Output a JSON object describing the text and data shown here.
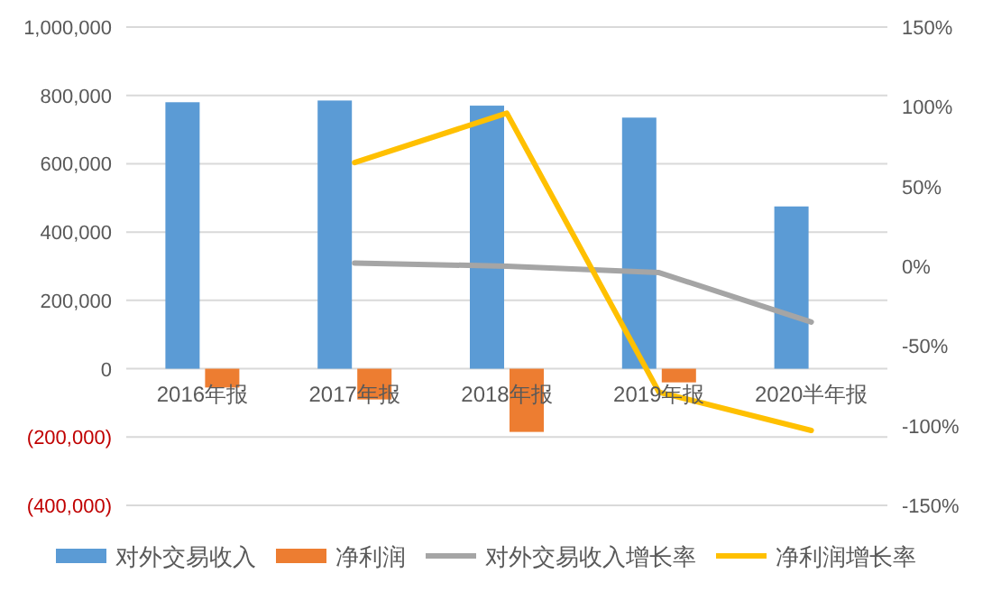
{
  "chart_data": {
    "type": "bar",
    "categories": [
      "2016年报",
      "2017年报",
      "2018年报",
      "2019年报",
      "2020半年报"
    ],
    "series": [
      {
        "name": "对外交易收入",
        "color": "#5b9bd5",
        "values": [
          780000,
          785000,
          770000,
          735000,
          475000
        ]
      },
      {
        "name": "净利润",
        "color": "#ed7d31",
        "values": [
          -55000,
          -90000,
          -185000,
          -40000,
          null
        ]
      },
      {
        "name": "对外交易收入增长率",
        "type": "line",
        "axis": "y2",
        "color": "#a5a5a5",
        "values": [
          null,
          2,
          0,
          -4,
          -35
        ]
      },
      {
        "name": "净利润增长率",
        "type": "line",
        "axis": "y2",
        "color": "#ffc000",
        "values": [
          null,
          65,
          96,
          -79,
          -103
        ]
      }
    ],
    "ylim": [
      -400000,
      1000000
    ],
    "yticks": [
      {
        "value": -400000,
        "label": "(400,000)"
      },
      {
        "value": -200000,
        "label": "(200,000)"
      },
      {
        "value": 0,
        "label": "0"
      },
      {
        "value": 200000,
        "label": "200,000"
      },
      {
        "value": 400000,
        "label": "400,000"
      },
      {
        "value": 600000,
        "label": "600,000"
      },
      {
        "value": 800000,
        "label": "800,000"
      },
      {
        "value": 1000000,
        "label": "1,000,000"
      }
    ],
    "y2lim": [
      -150,
      150
    ],
    "y2ticks": [
      {
        "value": -150,
        "label": "-150%"
      },
      {
        "value": -100,
        "label": "-100%"
      },
      {
        "value": -50,
        "label": "-50%"
      },
      {
        "value": 0,
        "label": "0%"
      },
      {
        "value": 50,
        "label": "50%"
      },
      {
        "value": 100,
        "label": "100%"
      },
      {
        "value": 150,
        "label": "150%"
      }
    ],
    "grid": "y",
    "legend": "bottom"
  }
}
